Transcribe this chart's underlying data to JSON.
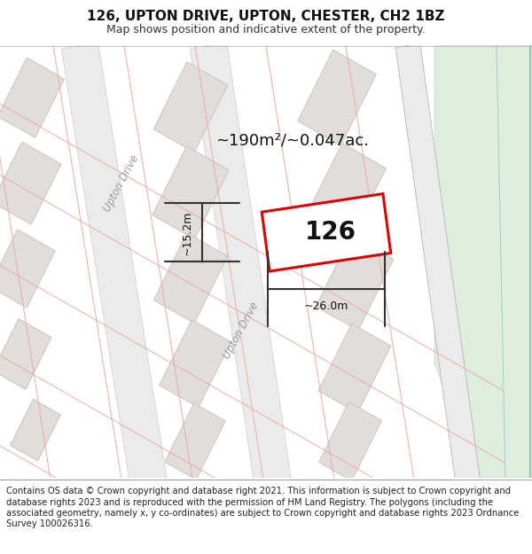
{
  "title": "126, UPTON DRIVE, UPTON, CHESTER, CH2 1BZ",
  "subtitle": "Map shows position and indicative extent of the property.",
  "footer": "Contains OS data © Crown copyright and database right 2021. This information is subject to Crown copyright and database rights 2023 and is reproduced with the permission of HM Land Registry. The polygons (including the associated geometry, namely x, y co-ordinates) are subject to Crown copyright and database rights 2023 Ordnance Survey 100026316.",
  "area_label": "~190m²/~0.047ac.",
  "width_label": "~26.0m",
  "height_label": "~15.2m",
  "number_label": "126",
  "map_bg": "#f7f6f4",
  "road_fill": "#ebebeb",
  "road_edge": "#cccccc",
  "building_fill": "#e0dddb",
  "building_edge": "#c8c4c0",
  "red_color": "#dd0000",
  "dim_color": "#333333",
  "road_label_color": "#999999",
  "green_fill": "#ddeedd",
  "green_edge": "#c8ddc8",
  "pink_line": "#e8a8a8",
  "title_fontsize": 11,
  "subtitle_fontsize": 9,
  "footer_fontsize": 7.2,
  "label_fontsize": 13,
  "dim_fontsize": 9,
  "road_fontsize": 8.5,
  "number_fontsize": 20
}
